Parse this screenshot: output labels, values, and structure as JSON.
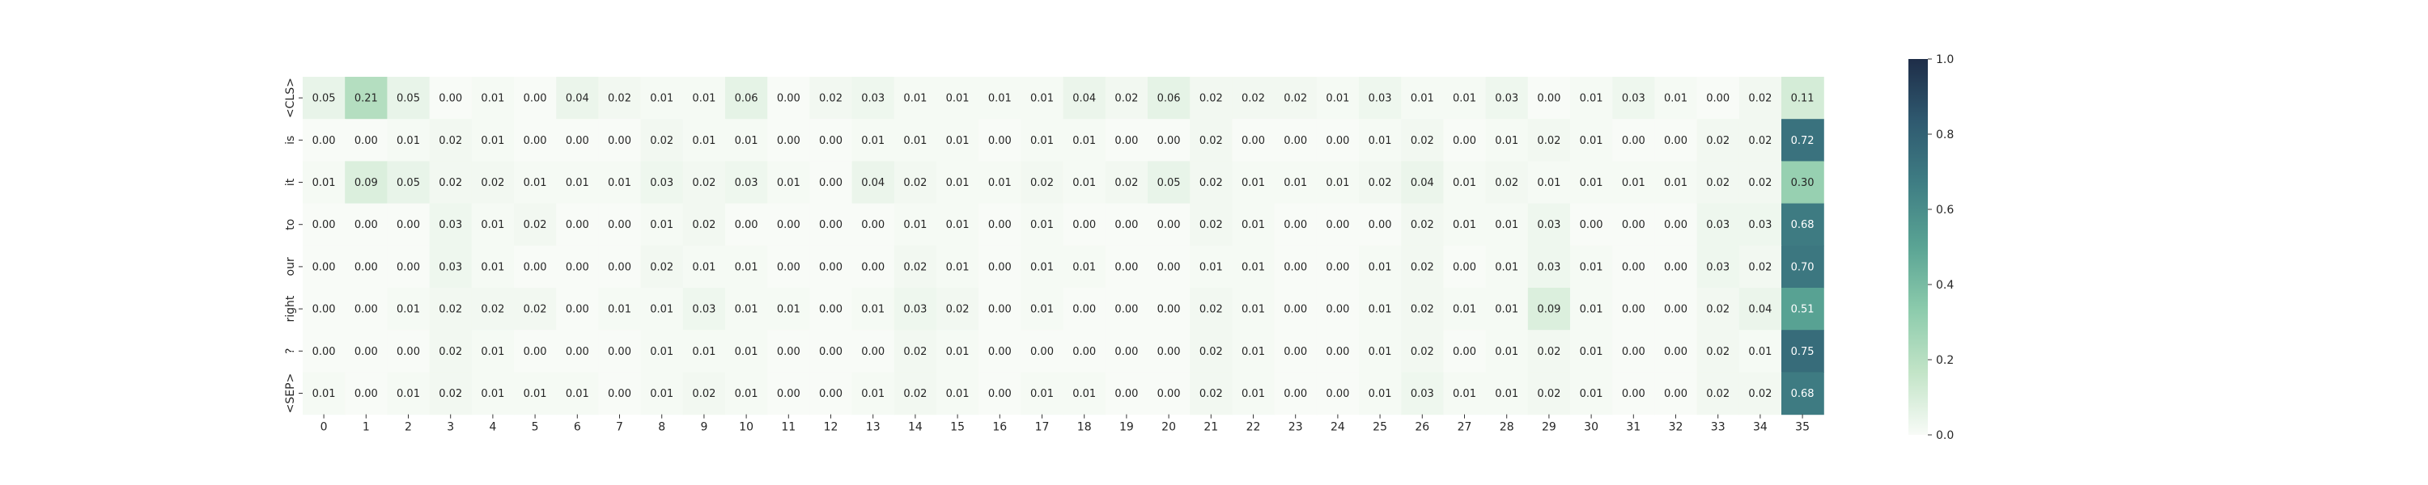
{
  "chart_data": {
    "type": "heatmap",
    "title": "",
    "xlabel": "",
    "ylabel": "",
    "x_categories": [
      "0",
      "1",
      "2",
      "3",
      "4",
      "5",
      "6",
      "7",
      "8",
      "9",
      "10",
      "11",
      "12",
      "13",
      "14",
      "15",
      "16",
      "17",
      "18",
      "19",
      "20",
      "21",
      "22",
      "23",
      "24",
      "25",
      "26",
      "27",
      "28",
      "29",
      "30",
      "31",
      "32",
      "33",
      "34",
      "35"
    ],
    "y_categories": [
      "<CLS>",
      "is",
      "it",
      "to",
      "our",
      "right",
      "?",
      "<SEP>"
    ],
    "values": [
      [
        0.05,
        0.21,
        0.05,
        0.0,
        0.01,
        0.0,
        0.04,
        0.02,
        0.01,
        0.01,
        0.06,
        0.0,
        0.02,
        0.03,
        0.01,
        0.01,
        0.01,
        0.01,
        0.04,
        0.02,
        0.06,
        0.02,
        0.02,
        0.02,
        0.01,
        0.03,
        0.01,
        0.01,
        0.03,
        0.0,
        0.01,
        0.03,
        0.01,
        0.0,
        0.02,
        0.11
      ],
      [
        0.0,
        0.0,
        0.01,
        0.02,
        0.01,
        0.0,
        0.0,
        0.0,
        0.02,
        0.01,
        0.01,
        0.0,
        0.0,
        0.01,
        0.01,
        0.01,
        0.0,
        0.01,
        0.01,
        0.0,
        0.0,
        0.02,
        0.0,
        0.0,
        0.0,
        0.01,
        0.02,
        0.0,
        0.01,
        0.02,
        0.01,
        0.0,
        0.0,
        0.02,
        0.02,
        0.72
      ],
      [
        0.01,
        0.09,
        0.05,
        0.02,
        0.02,
        0.01,
        0.01,
        0.01,
        0.03,
        0.02,
        0.03,
        0.01,
        0.0,
        0.04,
        0.02,
        0.01,
        0.01,
        0.02,
        0.01,
        0.02,
        0.05,
        0.02,
        0.01,
        0.01,
        0.01,
        0.02,
        0.04,
        0.01,
        0.02,
        0.01,
        0.01,
        0.01,
        0.01,
        0.02,
        0.02,
        0.3
      ],
      [
        0.0,
        0.0,
        0.0,
        0.03,
        0.01,
        0.02,
        0.0,
        0.0,
        0.01,
        0.02,
        0.0,
        0.0,
        0.0,
        0.0,
        0.01,
        0.01,
        0.0,
        0.01,
        0.0,
        0.0,
        0.0,
        0.02,
        0.01,
        0.0,
        0.0,
        0.0,
        0.02,
        0.01,
        0.01,
        0.03,
        0.0,
        0.0,
        0.0,
        0.03,
        0.03,
        0.68
      ],
      [
        0.0,
        0.0,
        0.0,
        0.03,
        0.01,
        0.0,
        0.0,
        0.0,
        0.02,
        0.01,
        0.01,
        0.0,
        0.0,
        0.0,
        0.02,
        0.01,
        0.0,
        0.01,
        0.01,
        0.0,
        0.0,
        0.01,
        0.01,
        0.0,
        0.0,
        0.01,
        0.02,
        0.0,
        0.01,
        0.03,
        0.01,
        0.0,
        0.0,
        0.03,
        0.02,
        0.7
      ],
      [
        0.0,
        0.0,
        0.01,
        0.02,
        0.02,
        0.02,
        0.0,
        0.01,
        0.01,
        0.03,
        0.01,
        0.01,
        0.0,
        0.01,
        0.03,
        0.02,
        0.0,
        0.01,
        0.0,
        0.0,
        0.0,
        0.02,
        0.01,
        0.0,
        0.0,
        0.01,
        0.02,
        0.01,
        0.01,
        0.09,
        0.01,
        0.0,
        0.0,
        0.02,
        0.04,
        0.51
      ],
      [
        0.0,
        0.0,
        0.0,
        0.02,
        0.01,
        0.0,
        0.0,
        0.0,
        0.01,
        0.01,
        0.01,
        0.0,
        0.0,
        0.0,
        0.02,
        0.01,
        0.0,
        0.0,
        0.0,
        0.0,
        0.0,
        0.02,
        0.01,
        0.0,
        0.0,
        0.01,
        0.02,
        0.0,
        0.01,
        0.02,
        0.01,
        0.0,
        0.0,
        0.02,
        0.01,
        0.75
      ],
      [
        0.01,
        0.0,
        0.01,
        0.02,
        0.01,
        0.01,
        0.01,
        0.0,
        0.01,
        0.02,
        0.01,
        0.0,
        0.0,
        0.01,
        0.02,
        0.01,
        0.0,
        0.01,
        0.01,
        0.0,
        0.0,
        0.02,
        0.01,
        0.0,
        0.0,
        0.01,
        0.03,
        0.01,
        0.01,
        0.02,
        0.01,
        0.0,
        0.0,
        0.02,
        0.02,
        0.68
      ]
    ],
    "colorbar": {
      "range": [
        0.0,
        1.0
      ],
      "ticks": [
        "0.0",
        "0.2",
        "0.4",
        "0.6",
        "0.8",
        "1.0"
      ],
      "colors": [
        "#f8fbf7",
        "#c2e4c7",
        "#8ccbac",
        "#5aa494",
        "#3f7e84",
        "#2f5a70",
        "#1e2d48"
      ]
    },
    "grid": false,
    "legend": "colorbar-right"
  }
}
